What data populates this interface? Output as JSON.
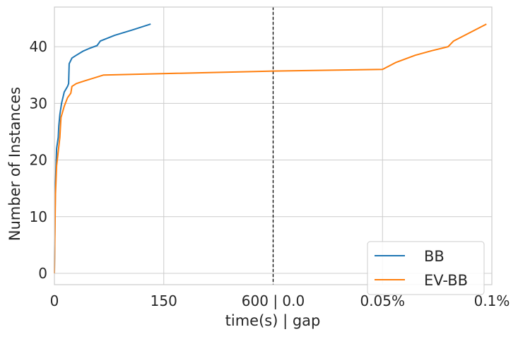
{
  "chart_data": {
    "type": "line",
    "xlabel": "time(s) | gap",
    "ylabel": "Number of Instances",
    "ylim": [
      -2,
      47
    ],
    "grid": true,
    "legend_position": "bottom-right",
    "x_ticks": [
      {
        "pos": 0,
        "label": "0"
      },
      {
        "pos": 1,
        "label": "150"
      },
      {
        "pos": 2,
        "label": "600 | 0.0"
      },
      {
        "pos": 3,
        "label": "0.05%"
      },
      {
        "pos": 4,
        "label": "0.1%"
      }
    ],
    "y_ticks": [
      0,
      10,
      20,
      30,
      40
    ],
    "divider_x": 2,
    "series": [
      {
        "name": "BB",
        "color": "#1f77b4",
        "points": [
          [
            0,
            0
          ],
          [
            0.005,
            10
          ],
          [
            0.01,
            16
          ],
          [
            0.02,
            22
          ],
          [
            0.035,
            24
          ],
          [
            0.04,
            26
          ],
          [
            0.05,
            28
          ],
          [
            0.065,
            30
          ],
          [
            0.09,
            32
          ],
          [
            0.12,
            33
          ],
          [
            0.13,
            33.5
          ],
          [
            0.135,
            37
          ],
          [
            0.16,
            38
          ],
          [
            0.2,
            38.5
          ],
          [
            0.26,
            39.2
          ],
          [
            0.32,
            39.7
          ],
          [
            0.39,
            40.2
          ],
          [
            0.42,
            41
          ],
          [
            0.55,
            42
          ],
          [
            0.72,
            43
          ],
          [
            0.88,
            44
          ]
        ]
      },
      {
        "name": "EV-BB",
        "color": "#ff7f0e",
        "points": [
          [
            0,
            0
          ],
          [
            0.005,
            8
          ],
          [
            0.01,
            14
          ],
          [
            0.02,
            19
          ],
          [
            0.05,
            24
          ],
          [
            0.06,
            27.5
          ],
          [
            0.09,
            29.5
          ],
          [
            0.12,
            31
          ],
          [
            0.15,
            31.8
          ],
          [
            0.16,
            33
          ],
          [
            0.2,
            33.5
          ],
          [
            0.28,
            34
          ],
          [
            0.45,
            35
          ],
          [
            2.0,
            35.7
          ],
          [
            3.0,
            36
          ],
          [
            3.05,
            36.5
          ],
          [
            3.12,
            37.2
          ],
          [
            3.3,
            38.5
          ],
          [
            3.45,
            39.3
          ],
          [
            3.6,
            40
          ],
          [
            3.65,
            41
          ],
          [
            3.75,
            42
          ],
          [
            3.85,
            43
          ],
          [
            3.95,
            44
          ]
        ]
      }
    ]
  }
}
